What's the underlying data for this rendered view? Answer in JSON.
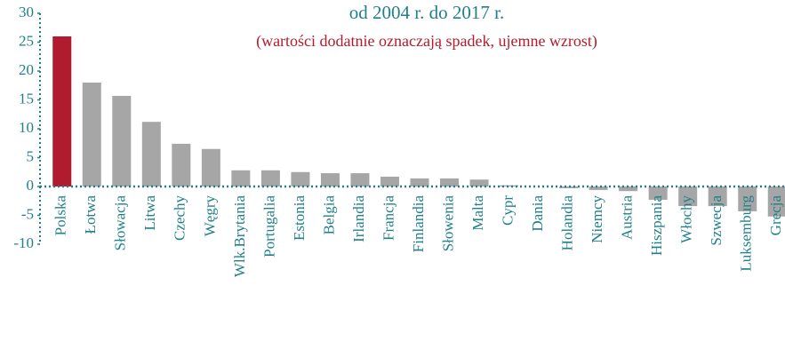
{
  "chart_data": {
    "type": "bar",
    "title": "od 2004 r. do 2017 r.",
    "subtitle": "(wartości dodatnie oznaczają spadek, ujemne wzrost)",
    "categories": [
      "Polska",
      "Łotwa",
      "Słowacja",
      "Litwa",
      "Czechy",
      "Węgry",
      "Wlk.Brytania",
      "Portugalia",
      "Estonia",
      "Belgia",
      "Irlandia",
      "Francja",
      "Finlandia",
      "Słowenia",
      "Malta",
      "Cypr",
      "Dania",
      "Holandia",
      "Niemcy",
      "Austria",
      "Hiszpania",
      "Włochy",
      "Szwecja",
      "Luksemburg",
      "Grecja"
    ],
    "values": [
      26,
      18,
      15.7,
      11.2,
      7.4,
      6.5,
      2.8,
      2.8,
      2.5,
      2.3,
      2.3,
      1.7,
      1.4,
      1.4,
      1.2,
      0.2,
      0,
      -0.3,
      -0.6,
      -0.8,
      -2.3,
      -3.4,
      -3.4,
      -4.3,
      -5.2
    ],
    "colors": [
      "#b01c2e",
      "#a6a6a6",
      "#a6a6a6",
      "#a6a6a6",
      "#a6a6a6",
      "#a6a6a6",
      "#a6a6a6",
      "#a6a6a6",
      "#a6a6a6",
      "#a6a6a6",
      "#a6a6a6",
      "#a6a6a6",
      "#a6a6a6",
      "#a6a6a6",
      "#a6a6a6",
      "#a6a6a6",
      "#a6a6a6",
      "#a6a6a6",
      "#a6a6a6",
      "#a6a6a6",
      "#a6a6a6",
      "#a6a6a6",
      "#a6a6a6",
      "#a6a6a6",
      "#a6a6a6"
    ],
    "ylim": [
      -10,
      30
    ],
    "yticks": [
      -10,
      -5,
      0,
      5,
      10,
      15,
      20,
      25,
      30
    ],
    "grid": false
  }
}
